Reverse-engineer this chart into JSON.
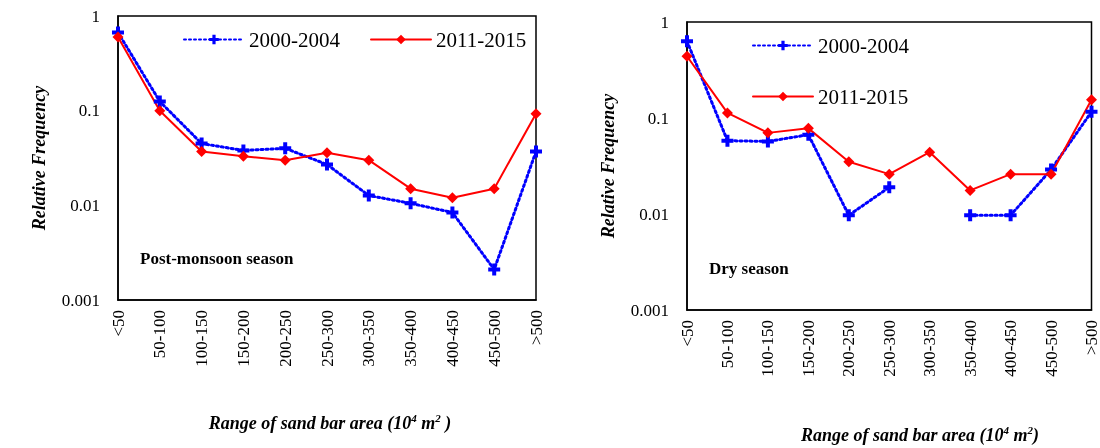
{
  "chart_data": [
    {
      "type": "line",
      "annotations": [
        "Post-monsoon season"
      ],
      "xlabel": "Range of sand bar area (10$^{4}$ m$^{2}$ )",
      "ylabel": "Relative Frequency",
      "categories": [
        "<50",
        "50-100",
        "100-150",
        "150-200",
        "200-250",
        "250-300",
        "300-350",
        "350-400",
        "400-450",
        "450-500",
        ">500"
      ],
      "series": [
        {
          "name": "2000-2004",
          "color": "#0000ff",
          "marker": "cross",
          "line_style": "dotted",
          "values": [
            0.67,
            0.125,
            0.045,
            0.038,
            0.04,
            0.027,
            0.0127,
            0.0105,
            0.0084,
            0.0021,
            0.037
          ]
        },
        {
          "name": "2011-2015",
          "color": "#ff0000",
          "marker": "diamond",
          "line_style": "solid",
          "values": [
            0.6,
            0.1,
            0.037,
            0.033,
            0.03,
            0.036,
            0.03,
            0.015,
            0.012,
            0.015,
            0.093
          ]
        }
      ],
      "log": "y",
      "ylim": [
        0.001,
        1
      ],
      "yticks": [
        0.001,
        0.01,
        0.1,
        1
      ],
      "grid": false,
      "legend": "top"
    },
    {
      "type": "line",
      "annotations": [
        "Dry season"
      ],
      "xlabel": "Range of sand bar area (10$^{4}$ m$^{2}$)",
      "ylabel": "Relative Frequency",
      "categories": [
        "<50",
        "50-100",
        "100-150",
        "150-200",
        "200-250",
        "250-300",
        "300-350",
        "350-400",
        "400-450",
        "450-500",
        ">500"
      ],
      "series": [
        {
          "name": "2000-2004",
          "color": "#0000ff",
          "marker": "cross",
          "line_style": "dotted",
          "values": [
            0.63,
            0.058,
            0.057,
            0.067,
            0.0097,
            0.019,
            null,
            0.0097,
            0.0097,
            0.029,
            0.116
          ]
        },
        {
          "name": "2011-2015",
          "color": "#ff0000",
          "marker": "diamond",
          "line_style": "solid",
          "values": [
            0.44,
            0.113,
            0.07,
            0.078,
            0.035,
            0.026,
            0.044,
            0.0176,
            0.026,
            0.026,
            0.155
          ]
        }
      ],
      "log": "y",
      "ylim": [
        0.001,
        1
      ],
      "yticks": [
        0.001,
        0.01,
        0.1,
        1
      ],
      "grid": false,
      "legend": "top"
    }
  ]
}
